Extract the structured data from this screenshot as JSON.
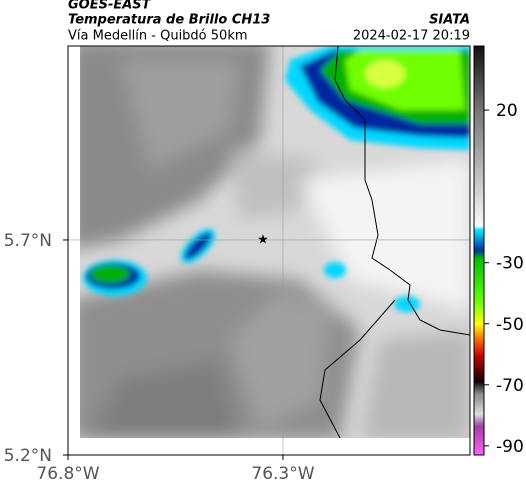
{
  "header": {
    "source": "GOES-EAST",
    "title": "Temperatura de Brillo CH13",
    "brand": "SIATA",
    "route": "Vía Medellín - Quibdó 50km",
    "timestamp": "2024-02-17 20:19"
  },
  "map": {
    "xlim": [
      -76.8,
      -75.865
    ],
    "ylim": [
      5.2,
      6.151
    ],
    "xticks": [
      {
        "value": -76.8,
        "label": "76.8°W"
      },
      {
        "value": -76.3,
        "label": "76.3°W"
      }
    ],
    "yticks": [
      {
        "value": 5.7,
        "label": "5.7°N"
      },
      {
        "value": 5.2,
        "label": "5.2°N"
      }
    ],
    "grid": true
  },
  "colorbar": {
    "range": [
      41,
      -93
    ],
    "ticks": [
      20,
      -30,
      -50,
      -70,
      -90
    ]
  }
}
